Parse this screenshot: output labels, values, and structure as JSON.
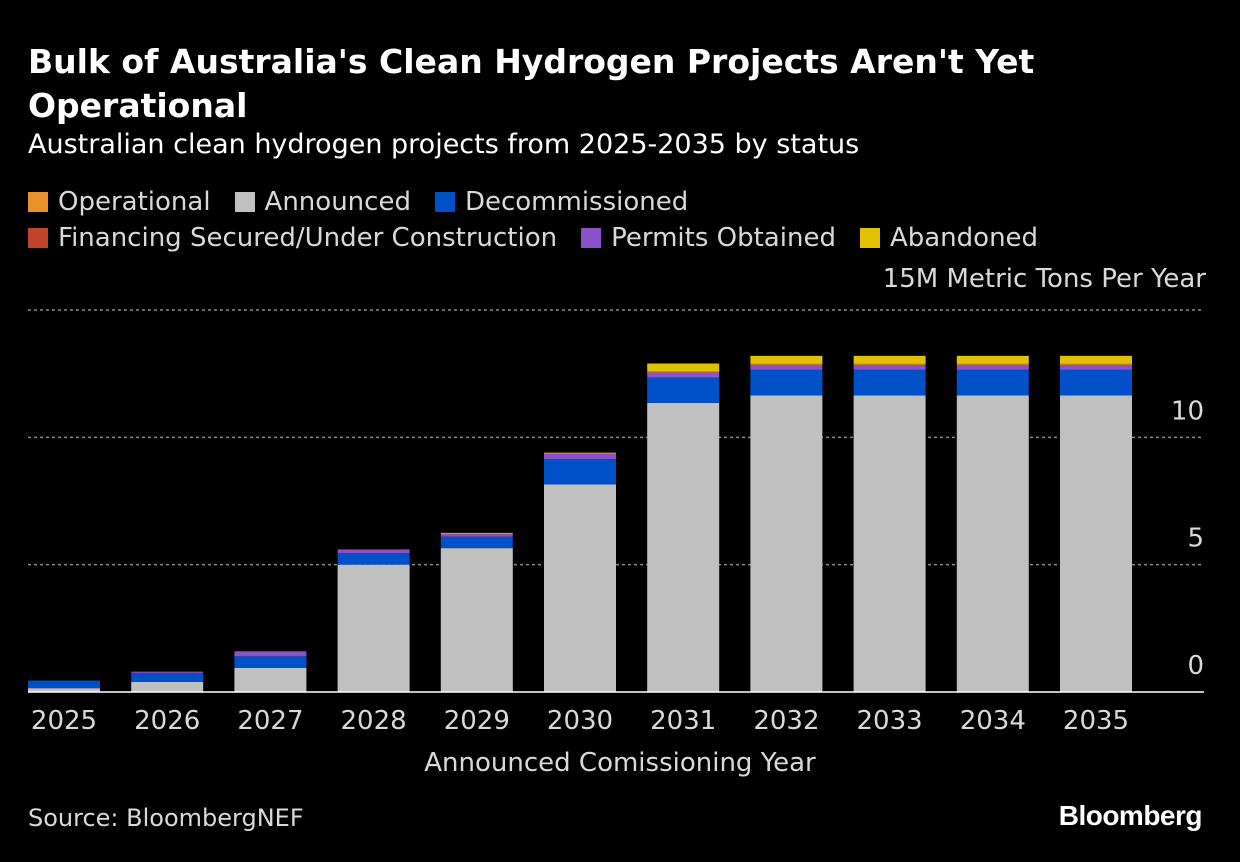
{
  "chart_data": {
    "type": "bar",
    "stacked": true,
    "title": "Bulk of Australia's Clean Hydrogen Projects Aren't Yet Operational",
    "subtitle": "Australian clean hydrogen projects from 2025-2035 by status",
    "unit_label": "15M Metric Tons Per Year",
    "xlabel": "Announced Comissioning Year",
    "ylabel": "",
    "ylim": [
      0,
      15
    ],
    "yticks": [
      0,
      5,
      10
    ],
    "gridlines": [
      5,
      10,
      15
    ],
    "categories": [
      "2025",
      "2026",
      "2027",
      "2028",
      "2029",
      "2030",
      "2031",
      "2032",
      "2033",
      "2034",
      "2035"
    ],
    "series": [
      {
        "name": "Operational",
        "color": "#e8912a",
        "values": [
          0,
          0,
          0,
          0,
          0.05,
          0.05,
          0.05,
          0.05,
          0.05,
          0.05,
          0.05
        ]
      },
      {
        "name": "Announced",
        "color": "#c0c0c0",
        "values": [
          0.15,
          0.4,
          0.95,
          5.0,
          5.65,
          8.15,
          11.35,
          11.65,
          11.65,
          11.65,
          11.65
        ]
      },
      {
        "name": "Decommissioned",
        "color": "#0050c8",
        "values": [
          0.3,
          0.35,
          0.45,
          0.45,
          0.45,
          1.0,
          1.0,
          1.0,
          1.0,
          1.0,
          1.0
        ]
      },
      {
        "name": "Financing Secured/Under Construction",
        "color": "#c0442a",
        "values": [
          0,
          0,
          0,
          0,
          0,
          0,
          0,
          0,
          0,
          0,
          0
        ]
      },
      {
        "name": "Permits Obtained",
        "color": "#8c50c8",
        "values": [
          0,
          0.05,
          0.2,
          0.15,
          0.1,
          0.2,
          0.2,
          0.2,
          0.2,
          0.2,
          0.2
        ]
      },
      {
        "name": "Abandoned",
        "color": "#e0c000",
        "values": [
          0,
          0,
          0,
          0,
          0,
          0,
          0.3,
          0.3,
          0.3,
          0.3,
          0.3
        ]
      }
    ],
    "stack_order": [
      "Announced",
      "Decommissioned",
      "Permits Obtained",
      "Financing Secured/Under Construction",
      "Operational",
      "Abandoned"
    ],
    "legend_rows": [
      [
        "Operational",
        "Announced",
        "Decommissioned"
      ],
      [
        "Financing Secured/Under Construction",
        "Permits Obtained",
        "Abandoned"
      ]
    ]
  },
  "source": "Source: BloombergNEF",
  "brand": "Bloomberg"
}
